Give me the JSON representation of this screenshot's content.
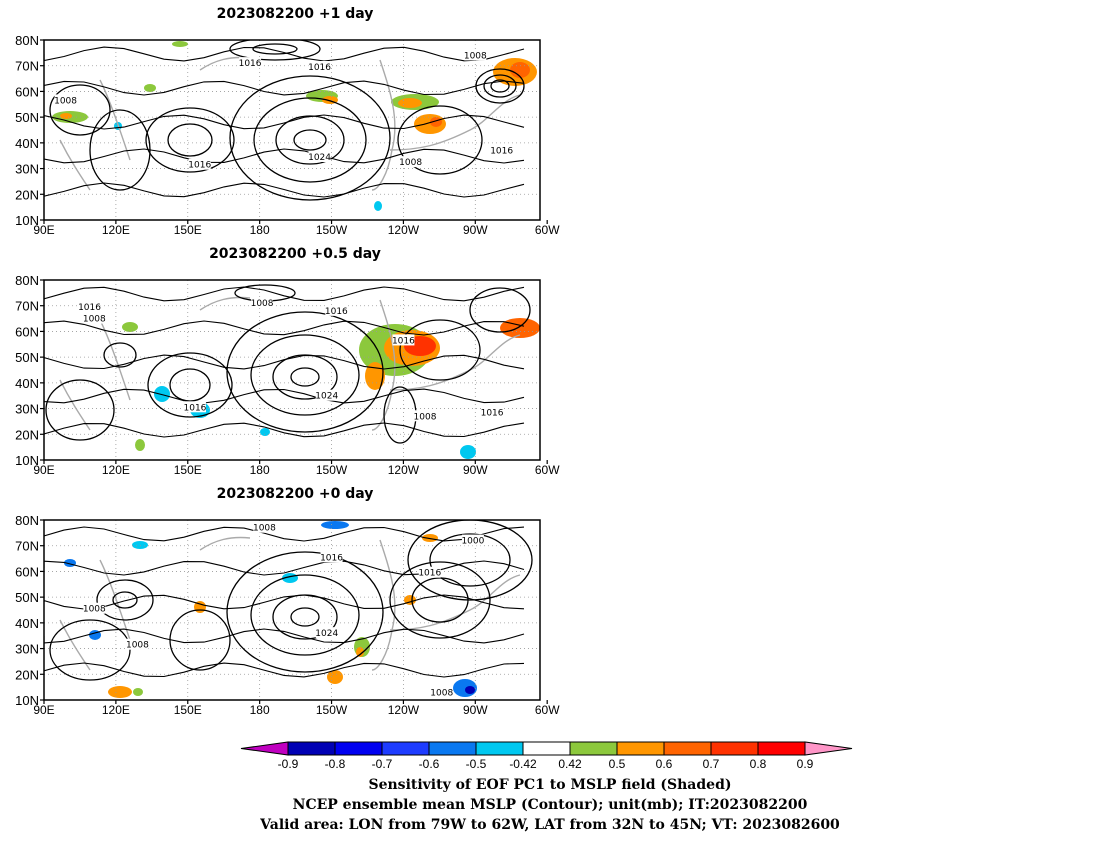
{
  "panels": [
    {
      "title": "2023082200 +1 day",
      "contour_labels": [
        {
          "text": "1016",
          "lon": 155,
          "lat": 31.5
        },
        {
          "text": "1008",
          "lon": 99,
          "lat": 56.5
        },
        {
          "text": "1016",
          "lon": 176,
          "lat": 71
        },
        {
          "text": "1016",
          "lon": -155,
          "lat": 69.5
        },
        {
          "text": "1024",
          "lon": -155,
          "lat": 34.5
        },
        {
          "text": "1008",
          "lon": -117,
          "lat": 32.5
        },
        {
          "text": "1008",
          "lon": -90,
          "lat": 74
        },
        {
          "text": "1016",
          "lon": -79,
          "lat": 37
        }
      ]
    },
    {
      "title": "2023082200 +0.5 day",
      "contour_labels": [
        {
          "text": "1016",
          "lon": 109,
          "lat": 69.5
        },
        {
          "text": "1008",
          "lon": 111,
          "lat": 65
        },
        {
          "text": "1008",
          "lon": 181,
          "lat": 71
        },
        {
          "text": "1016",
          "lon": -148,
          "lat": 68
        },
        {
          "text": "1016",
          "lon": -120,
          "lat": 56.5
        },
        {
          "text": "1024",
          "lon": -152,
          "lat": 35
        },
        {
          "text": "1016",
          "lon": 153,
          "lat": 30.5
        },
        {
          "text": "1008",
          "lon": -111,
          "lat": 27
        },
        {
          "text": "1016",
          "lon": -83,
          "lat": 28.5
        }
      ]
    },
    {
      "title": "2023082200 +0 day",
      "contour_labels": [
        {
          "text": "1008",
          "lon": 182,
          "lat": 77
        },
        {
          "text": "1016",
          "lon": -150,
          "lat": 65.5
        },
        {
          "text": "1000",
          "lon": -91,
          "lat": 72
        },
        {
          "text": "1016",
          "lon": -109,
          "lat": 59.5
        },
        {
          "text": "1008",
          "lon": 111,
          "lat": 45.5
        },
        {
          "text": "1024",
          "lon": -152,
          "lat": 36
        },
        {
          "text": "1008",
          "lon": 129,
          "lat": 31.5
        },
        {
          "text": "1008",
          "lon": -104,
          "lat": 13
        }
      ]
    }
  ],
  "map_axes": {
    "lon_range": [
      90,
      297
    ],
    "lat_range": [
      10,
      80
    ],
    "x_ticks": [
      "90E",
      "120E",
      "150E",
      "180",
      "150W",
      "120W",
      "90W",
      "60W"
    ],
    "x_tick_lons": [
      90,
      120,
      150,
      180,
      210,
      240,
      270,
      300
    ],
    "y_ticks": [
      "80N",
      "70N",
      "60N",
      "50N",
      "40N",
      "30N",
      "20N",
      "10N"
    ],
    "y_tick_lats": [
      80,
      70,
      60,
      50,
      40,
      30,
      20,
      10
    ],
    "grid": true,
    "coastline_color": "#aaaaaa",
    "contour_color": "#000000"
  },
  "colorbar": {
    "tick_labels": [
      "-0.9",
      "-0.8",
      "-0.7",
      "-0.6",
      "-0.5",
      "-0.42",
      "0.42",
      "0.5",
      "0.6",
      "0.7",
      "0.8",
      "0.9"
    ],
    "colors": [
      "#c000c0",
      "#0000b4",
      "#0000f0",
      "#1e3cff",
      "#0a78f0",
      "#00c8f0",
      "#ffffff",
      "#8cc83c",
      "#ff9600",
      "#ff6400",
      "#ff3200",
      "#ff0000",
      "#ff96c8"
    ]
  },
  "caption": {
    "line1": "Sensitivity of EOF PC1 to MSLP field (Shaded)",
    "line2": "NCEP ensemble mean MSLP (Contour); unit(mb); IT:2023082200",
    "line3": "Valid area: LON from 79W to 62W, LAT from 32N to 45N; VT: 2023082600"
  }
}
